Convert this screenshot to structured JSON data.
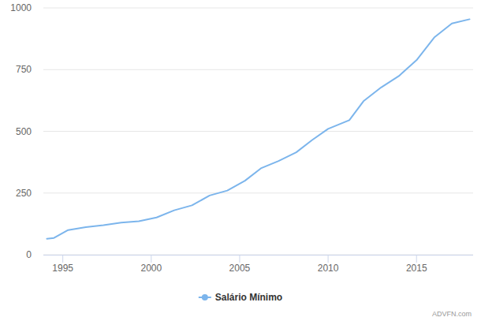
{
  "chart_data": {
    "type": "line",
    "x": [
      1994.1,
      1994.5,
      1995.3,
      1996.3,
      1997.3,
      1998.3,
      1999.3,
      2000.3,
      2001.3,
      2002.3,
      2003.3,
      2004.3,
      2005.3,
      2006.2,
      2007.2,
      2008.2,
      2009.1,
      2010.0,
      2011.2,
      2012.0,
      2013.0,
      2014.0,
      2015.0,
      2016.0,
      2017.0,
      2018.0
    ],
    "series": [
      {
        "name": "Salário Mínimo",
        "color": "#7cb5ec",
        "values": [
          65,
          68,
          100,
          112,
          120,
          130,
          136,
          151,
          180,
          200,
          240,
          260,
          300,
          350,
          380,
          415,
          465,
          510,
          545,
          622,
          678,
          724,
          788,
          880,
          937,
          954
        ]
      }
    ],
    "xlim": [
      1993.9,
      2018.2
    ],
    "xticks": [
      1995,
      2000,
      2005,
      2010,
      2015
    ],
    "ylim": [
      0,
      1000
    ],
    "yticks": [
      0,
      250,
      500,
      750,
      1000
    ],
    "grid": true,
    "legend": "bottom",
    "annotations": [
      "ADVFN.com"
    ]
  }
}
